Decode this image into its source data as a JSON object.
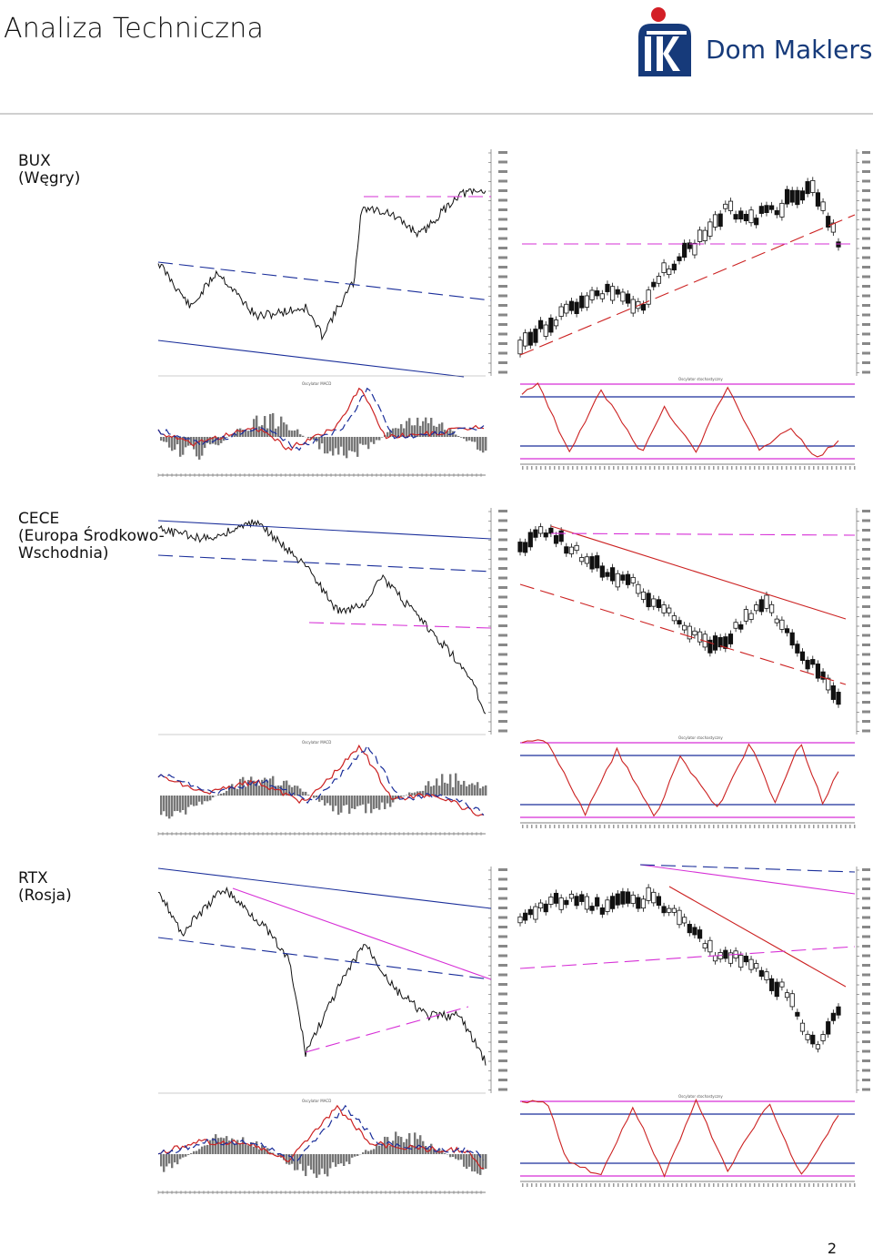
{
  "header": {
    "title": "Analiza Techniczna",
    "brand": "Dom Maklerski",
    "logo_icon": "pko-logo"
  },
  "sections": [
    {
      "id": "bux",
      "label_lines": [
        "BUX",
        "(Węgry)"
      ],
      "indicator_left": "Oscylator MACD",
      "indicator_right": "Oscylator stochastyczny"
    },
    {
      "id": "cece",
      "label_lines": [
        "CECE",
        "(Europa Środkowo-",
        "Wschodnia)"
      ],
      "indicator_left": "Oscylator MACD",
      "indicator_right": "Oscylator stochastyczny"
    },
    {
      "id": "rtx",
      "label_lines": [
        "RTX",
        "(Rosja)"
      ],
      "indicator_left": "Oscylator MACD",
      "indicator_right": "Oscylator stochastyczny"
    }
  ],
  "colors": {
    "trend_blue": "#1a2e9a",
    "trend_red": "#cc2222",
    "trend_magenta": "#d62fd6",
    "price": "#111111"
  },
  "page_number": "2"
}
